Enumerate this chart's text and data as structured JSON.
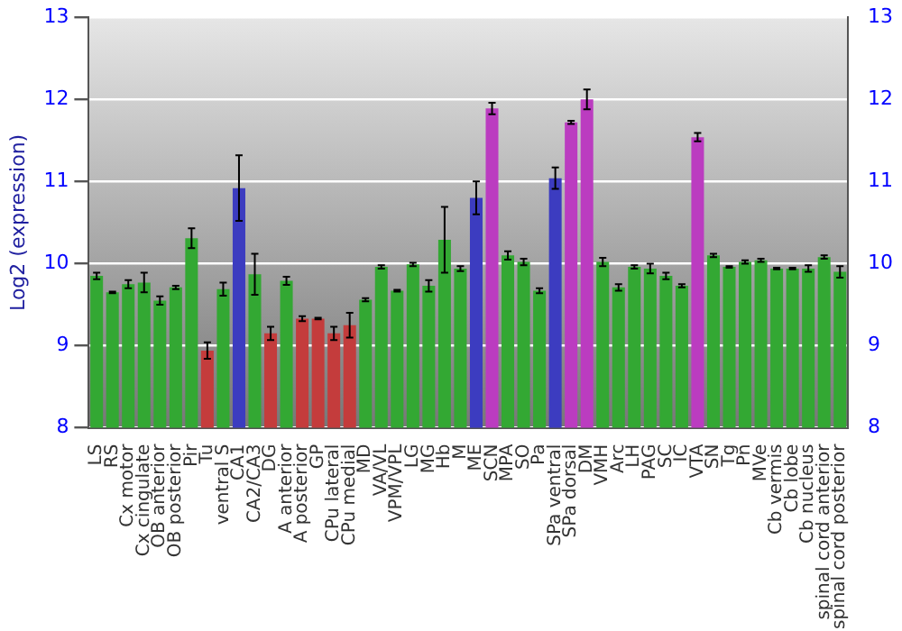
{
  "chart_data": {
    "type": "bar",
    "ylabel": "Log2 (expression)",
    "categories": [
      "LS",
      "RS",
      "Cx motor",
      "Cx cingulate",
      "OB anterior",
      "OB posterior",
      "Pir",
      "Tu",
      "ventral S",
      "CA1",
      "CA2/CA3",
      "DG",
      "A anterior",
      "A posterior",
      "GP",
      "CPu lateral",
      "CPu medial",
      "MD",
      "VA/VL",
      "VPM/VPL",
      "LG",
      "MG",
      "Hb",
      "M",
      "ME",
      "SCN",
      "MPA",
      "SO",
      "Pa",
      "SPa ventral",
      "SPa dorsal",
      "DM",
      "VMH",
      "Arc",
      "LH",
      "PAG",
      "SC",
      "IC",
      "VTA",
      "SN",
      "Tg",
      "Pn",
      "MVe",
      "Cb vermis",
      "Cb lobe",
      "Cb nucleus",
      "spinal cord anterior",
      "spinal cord posterior"
    ],
    "values": [
      9.85,
      9.65,
      9.75,
      9.77,
      9.55,
      9.71,
      10.31,
      8.94,
      9.69,
      10.92,
      9.87,
      9.15,
      9.79,
      9.33,
      9.33,
      9.15,
      9.25,
      9.56,
      9.96,
      9.67,
      9.99,
      9.73,
      10.29,
      9.94,
      10.8,
      11.89,
      10.1,
      10.02,
      9.67,
      11.04,
      11.72,
      12.0,
      10.02,
      9.71,
      9.96,
      9.94,
      9.85,
      9.73,
      11.54,
      10.1,
      9.96,
      10.02,
      10.04,
      9.94,
      9.94,
      9.94,
      10.08,
      9.9
    ],
    "errors": [
      0.04,
      0.01,
      0.05,
      0.12,
      0.05,
      0.02,
      0.12,
      0.1,
      0.08,
      0.4,
      0.25,
      0.08,
      0.05,
      0.03,
      0.01,
      0.08,
      0.15,
      0.02,
      0.02,
      0.01,
      0.02,
      0.07,
      0.4,
      0.03,
      0.2,
      0.07,
      0.05,
      0.04,
      0.03,
      0.13,
      0.02,
      0.12,
      0.05,
      0.04,
      0.02,
      0.06,
      0.04,
      0.02,
      0.05,
      0.02,
      0.01,
      0.02,
      0.02,
      0.01,
      0.01,
      0.04,
      0.02,
      0.07
    ],
    "colors": [
      "#33a833",
      "#33a833",
      "#33a833",
      "#33a833",
      "#33a833",
      "#33a833",
      "#33a833",
      "#c43c3c",
      "#33a833",
      "#3c3cc0",
      "#33a833",
      "#c43c3c",
      "#33a833",
      "#c43c3c",
      "#c43c3c",
      "#c43c3c",
      "#c43c3c",
      "#33a833",
      "#33a833",
      "#33a833",
      "#33a833",
      "#33a833",
      "#33a833",
      "#33a833",
      "#3c3cc0",
      "#bb3cc0",
      "#33a833",
      "#33a833",
      "#33a833",
      "#3c3cc0",
      "#bb3cc0",
      "#bb3cc0",
      "#33a833",
      "#33a833",
      "#33a833",
      "#33a833",
      "#33a833",
      "#33a833",
      "#bb3cc0",
      "#33a833",
      "#33a833",
      "#33a833",
      "#33a833",
      "#33a833",
      "#33a833",
      "#33a833",
      "#33a833",
      "#33a833"
    ],
    "ylim": [
      8,
      13
    ],
    "yticks": [
      8,
      9,
      10,
      11,
      12,
      13
    ],
    "y2lim": [
      8,
      13
    ],
    "y2ticks": [
      8,
      9,
      10,
      11,
      12,
      13
    ],
    "grid": "y",
    "legend": false
  }
}
